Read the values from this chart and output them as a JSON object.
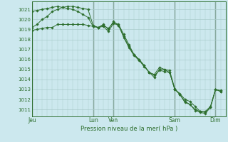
{
  "background_color": "#cce8ee",
  "grid_color": "#aacccc",
  "line_color": "#2d6e2d",
  "marker_color": "#2d6e2d",
  "xlabel": "Pression niveau de la mer( hPa )",
  "ylabel_values": [
    1011,
    1012,
    1013,
    1014,
    1015,
    1016,
    1017,
    1018,
    1019,
    1020,
    1021
  ],
  "ylim": [
    1010.3,
    1021.8
  ],
  "day_labels": [
    "Jeu",
    "Lun",
    "Ven",
    "Sam",
    "Dim"
  ],
  "day_positions": [
    0,
    72,
    96,
    168,
    216
  ],
  "series": [
    {
      "x": [
        0,
        6,
        12,
        18,
        24,
        30,
        36,
        42,
        48,
        54,
        60,
        66,
        72,
        78,
        84,
        90,
        96,
        102,
        108,
        114,
        120,
        126,
        132,
        138,
        144,
        150,
        156,
        162,
        168,
        174,
        180,
        186,
        192,
        198,
        204,
        210,
        216,
        222
      ],
      "y": [
        1018.9,
        1019.0,
        1019.1,
        1019.2,
        1019.2,
        1019.5,
        1019.5,
        1019.5,
        1019.5,
        1019.5,
        1019.5,
        1019.4,
        1019.3,
        1019.2,
        1019.4,
        1019.1,
        1019.7,
        1019.5,
        1018.5,
        1017.5,
        1016.5,
        1016.0,
        1015.4,
        1014.7,
        1014.2,
        1015.0,
        1015.0,
        1014.7,
        1013.0,
        1012.6,
        1012.0,
        1011.8,
        1011.3,
        1010.8,
        1010.8,
        1011.3,
        1013.0,
        1012.9
      ]
    },
    {
      "x": [
        0,
        6,
        12,
        18,
        24,
        30,
        36,
        42,
        48,
        54,
        60,
        66,
        72,
        78,
        84,
        90,
        96,
        102,
        108,
        114,
        120,
        126,
        132,
        138,
        144,
        150,
        156,
        162,
        168,
        174,
        180,
        186,
        192,
        198,
        204,
        210,
        216,
        222
      ],
      "y": [
        1019.2,
        1019.5,
        1020.0,
        1020.3,
        1020.8,
        1021.0,
        1021.2,
        1021.3,
        1021.3,
        1021.2,
        1021.1,
        1021.0,
        1019.4,
        1019.2,
        1019.5,
        1019.0,
        1019.8,
        1019.4,
        1018.3,
        1017.3,
        1016.5,
        1016.0,
        1015.4,
        1014.7,
        1014.5,
        1015.2,
        1015.0,
        1014.9,
        1013.1,
        1012.5,
        1011.8,
        1011.5,
        1011.0,
        1010.8,
        1010.7,
        1011.2,
        1013.0,
        1012.8
      ]
    },
    {
      "x": [
        0,
        6,
        12,
        18,
        24,
        30,
        36,
        42,
        48,
        54,
        60,
        66,
        72,
        78,
        84,
        90,
        96,
        102,
        108,
        114,
        120,
        126,
        132,
        138,
        144,
        150,
        156,
        162,
        168,
        174,
        180,
        186,
        192,
        198,
        204,
        210,
        216,
        222
      ],
      "y": [
        1020.8,
        1020.9,
        1021.0,
        1021.1,
        1021.2,
        1021.3,
        1021.2,
        1021.1,
        1021.0,
        1020.8,
        1020.5,
        1020.2,
        1019.3,
        1019.2,
        1019.3,
        1018.8,
        1019.6,
        1019.4,
        1018.2,
        1017.2,
        1016.4,
        1015.9,
        1015.3,
        1014.7,
        1014.4,
        1014.9,
        1014.8,
        1014.7,
        1013.0,
        1012.5,
        1011.7,
        1011.5,
        1010.9,
        1010.7,
        1010.6,
        1011.2,
        1013.0,
        1012.8
      ]
    }
  ],
  "xlim": [
    0,
    228
  ]
}
